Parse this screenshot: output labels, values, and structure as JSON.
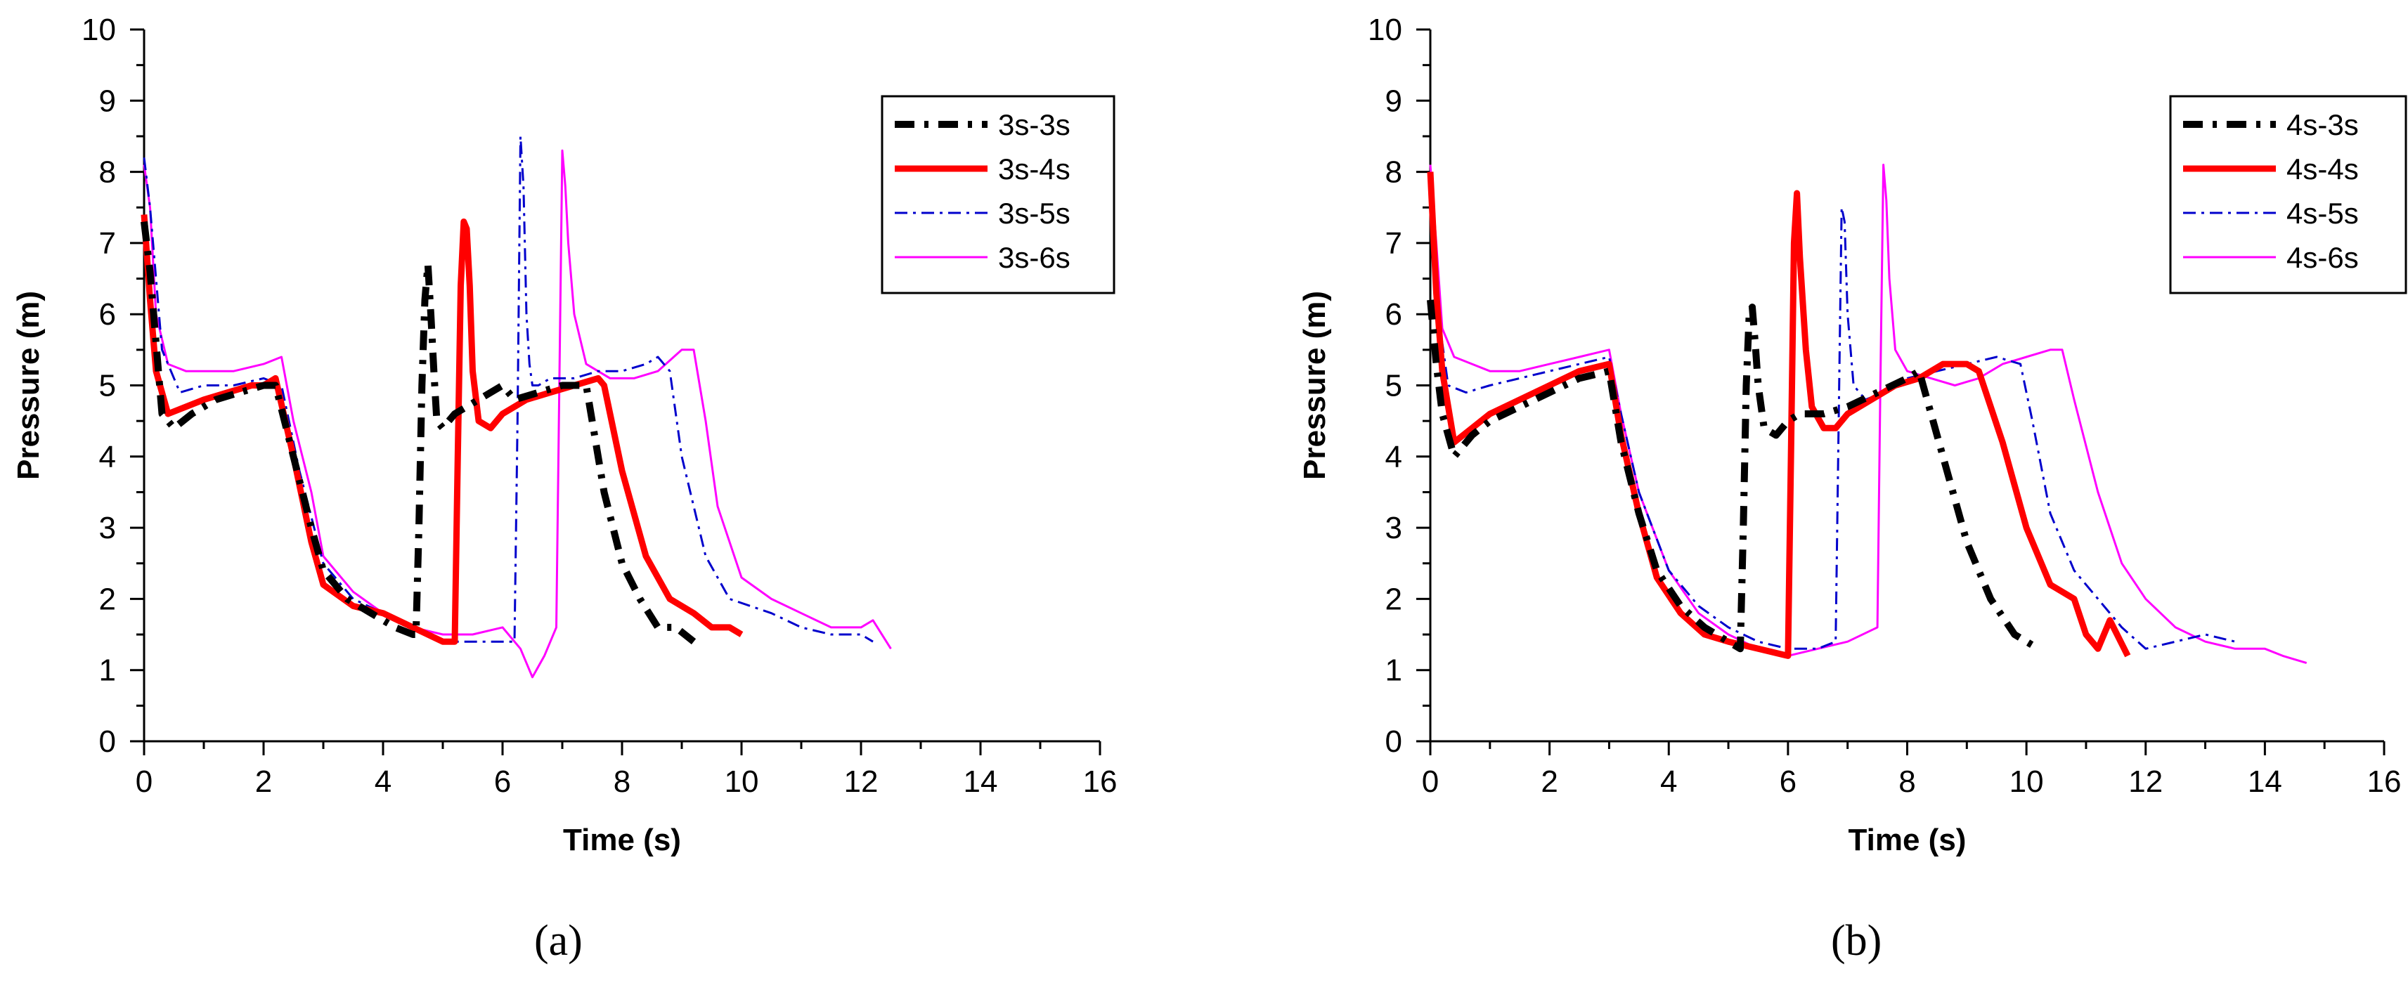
{
  "colors": {
    "axis": "#000000",
    "series_3": "#000000",
    "series_4": "#ff0000",
    "series_5": "#0000cc",
    "series_6": "#ff00ff"
  },
  "chart_data": [
    {
      "type": "line",
      "panel_label": "(a)",
      "xlabel": "Time (s)",
      "ylabel": "Pressure (m)",
      "xlim": [
        0,
        16
      ],
      "ylim": [
        0,
        10
      ],
      "xticks": [
        0,
        2,
        4,
        6,
        8,
        10,
        12,
        14,
        16
      ],
      "yticks": [
        0,
        1,
        2,
        3,
        4,
        5,
        6,
        7,
        8,
        9,
        10
      ],
      "grid": false,
      "legend_position": "top-right",
      "series": [
        {
          "name": "3s-3s",
          "style": "dashdot-thick",
          "x": [
            0,
            0.1,
            0.2,
            0.3,
            0.5,
            0.8,
            1.2,
            1.6,
            2.0,
            2.2,
            2.5,
            2.8,
            3.0,
            3.4,
            3.8,
            4.2,
            4.5,
            4.55,
            4.6,
            4.65,
            4.7,
            4.75,
            4.8,
            4.85,
            4.9,
            5.0,
            5.1,
            5.2,
            5.4,
            5.6,
            5.8,
            6.0,
            6.2,
            6.6,
            7.0,
            7.4,
            7.5,
            7.7,
            8.0,
            8.3,
            8.6,
            8.9,
            9.2
          ],
          "y": [
            7.3,
            6.6,
            5.6,
            4.6,
            4.4,
            4.6,
            4.8,
            4.9,
            5.0,
            5.0,
            4.0,
            3.0,
            2.4,
            2.0,
            1.8,
            1.6,
            1.5,
            1.5,
            3.0,
            5.0,
            6.2,
            6.7,
            6.0,
            5.2,
            4.5,
            4.4,
            4.5,
            4.6,
            4.7,
            4.8,
            4.9,
            5.0,
            4.8,
            4.9,
            5.0,
            5.0,
            4.5,
            3.5,
            2.5,
            2.0,
            1.6,
            1.6,
            1.4
          ]
        },
        {
          "name": "3s-4s",
          "style": "solid-thick",
          "x": [
            0,
            0.1,
            0.2,
            0.4,
            0.7,
            1.0,
            1.4,
            1.8,
            2.0,
            2.2,
            2.5,
            2.8,
            3.0,
            3.5,
            4.0,
            4.5,
            5.0,
            5.2,
            5.25,
            5.3,
            5.35,
            5.4,
            5.45,
            5.5,
            5.6,
            5.8,
            6.0,
            6.4,
            6.8,
            7.2,
            7.6,
            7.7,
            8.0,
            8.4,
            8.8,
            9.2,
            9.5,
            9.8,
            10.0
          ],
          "y": [
            7.4,
            6.2,
            5.2,
            4.6,
            4.7,
            4.8,
            4.9,
            5.0,
            5.0,
            5.1,
            4.0,
            2.8,
            2.2,
            1.9,
            1.8,
            1.6,
            1.4,
            1.4,
            4.0,
            6.4,
            7.3,
            7.2,
            6.4,
            5.2,
            4.5,
            4.4,
            4.6,
            4.8,
            4.9,
            5.0,
            5.1,
            5.0,
            3.8,
            2.6,
            2.0,
            1.8,
            1.6,
            1.6,
            1.5
          ]
        },
        {
          "name": "3s-5s",
          "style": "dashdot-thin",
          "x": [
            0,
            0.1,
            0.3,
            0.6,
            1.0,
            1.5,
            2.0,
            2.3,
            2.6,
            3.0,
            3.5,
            4.0,
            4.5,
            5.0,
            5.5,
            6.0,
            6.2,
            6.25,
            6.3,
            6.35,
            6.4,
            6.45,
            6.5,
            6.6,
            6.8,
            7.2,
            7.6,
            8.0,
            8.4,
            8.6,
            8.8,
            9.0,
            9.4,
            9.8,
            10.5,
            11.0,
            11.5,
            12.0,
            12.2
          ],
          "y": [
            8.2,
            7.5,
            5.5,
            4.9,
            5.0,
            5.0,
            5.1,
            5.0,
            3.8,
            2.5,
            2.0,
            1.8,
            1.6,
            1.4,
            1.4,
            1.4,
            1.4,
            4.5,
            8.5,
            7.8,
            6.0,
            5.3,
            5.0,
            5.0,
            5.1,
            5.1,
            5.2,
            5.2,
            5.3,
            5.4,
            5.2,
            4.0,
            2.6,
            2.0,
            1.8,
            1.6,
            1.5,
            1.5,
            1.4
          ]
        },
        {
          "name": "3s-6s",
          "style": "solid-thin",
          "x": [
            0,
            0.1,
            0.2,
            0.4,
            0.7,
            1.0,
            1.5,
            2.0,
            2.3,
            2.5,
            2.8,
            3.0,
            3.5,
            4.0,
            4.5,
            5.0,
            5.5,
            6.0,
            6.3,
            6.5,
            6.7,
            6.9,
            6.95,
            7.0,
            7.05,
            7.1,
            7.2,
            7.4,
            7.8,
            8.2,
            8.6,
            9.0,
            9.2,
            9.4,
            9.6,
            10.0,
            10.5,
            11.0,
            11.5,
            12.0,
            12.2,
            12.5
          ],
          "y": [
            8.1,
            7.5,
            6.0,
            5.3,
            5.2,
            5.2,
            5.2,
            5.3,
            5.4,
            4.5,
            3.5,
            2.6,
            2.1,
            1.8,
            1.6,
            1.5,
            1.5,
            1.6,
            1.3,
            0.9,
            1.2,
            1.6,
            5.0,
            8.3,
            7.8,
            7.0,
            6.0,
            5.3,
            5.1,
            5.1,
            5.2,
            5.5,
            5.5,
            4.5,
            3.3,
            2.3,
            2.0,
            1.8,
            1.6,
            1.6,
            1.7,
            1.3
          ]
        }
      ]
    },
    {
      "type": "line",
      "panel_label": "(b)",
      "xlabel": "Time (s)",
      "ylabel": "Pressure (m)",
      "xlim": [
        0,
        16
      ],
      "ylim": [
        0,
        10
      ],
      "xticks": [
        0,
        2,
        4,
        6,
        8,
        10,
        12,
        14,
        16
      ],
      "yticks": [
        0,
        1,
        2,
        3,
        4,
        5,
        6,
        7,
        8,
        9,
        10
      ],
      "grid": false,
      "legend_position": "top-right",
      "series": [
        {
          "name": "4s-3s",
          "style": "dashdot-thick",
          "x": [
            0,
            0.1,
            0.2,
            0.4,
            0.7,
            1.0,
            1.5,
            2.0,
            2.5,
            3.0,
            3.2,
            3.5,
            3.8,
            4.2,
            4.6,
            5.0,
            5.2,
            5.25,
            5.3,
            5.35,
            5.4,
            5.45,
            5.5,
            5.6,
            5.8,
            6.0,
            6.2,
            6.6,
            7.0,
            7.5,
            8.0,
            8.2,
            8.6,
            9.0,
            9.4,
            9.8,
            10.2
          ],
          "y": [
            6.2,
            5.3,
            4.6,
            4.0,
            4.3,
            4.5,
            4.7,
            4.9,
            5.1,
            5.2,
            4.2,
            3.2,
            2.4,
            1.9,
            1.6,
            1.4,
            1.3,
            3.0,
            5.0,
            6.0,
            6.1,
            5.6,
            5.0,
            4.4,
            4.3,
            4.5,
            4.6,
            4.6,
            4.7,
            4.9,
            5.1,
            5.2,
            4.0,
            2.8,
            2.0,
            1.5,
            1.3
          ]
        },
        {
          "name": "4s-4s",
          "style": "solid-thick",
          "x": [
            0,
            0.1,
            0.2,
            0.4,
            0.7,
            1.0,
            1.5,
            2.0,
            2.5,
            3.0,
            3.2,
            3.5,
            3.8,
            4.2,
            4.6,
            5.0,
            5.5,
            6.0,
            6.05,
            6.1,
            6.15,
            6.2,
            6.3,
            6.4,
            6.6,
            6.8,
            7.0,
            7.4,
            7.8,
            8.2,
            8.6,
            9.0,
            9.2,
            9.6,
            10.0,
            10.4,
            10.8,
            11.0,
            11.2,
            11.4,
            11.7
          ],
          "y": [
            8.0,
            6.3,
            5.2,
            4.2,
            4.4,
            4.6,
            4.8,
            5.0,
            5.2,
            5.3,
            4.3,
            3.2,
            2.3,
            1.8,
            1.5,
            1.4,
            1.3,
            1.2,
            4.0,
            7.0,
            7.7,
            6.8,
            5.5,
            4.7,
            4.4,
            4.4,
            4.6,
            4.8,
            5.0,
            5.1,
            5.3,
            5.3,
            5.2,
            4.2,
            3.0,
            2.2,
            2.0,
            1.5,
            1.3,
            1.7,
            1.2
          ]
        },
        {
          "name": "4s-5s",
          "style": "dashdot-thin",
          "x": [
            0,
            0.1,
            0.3,
            0.6,
            1.0,
            1.5,
            2.0,
            2.5,
            3.0,
            3.2,
            3.5,
            4.0,
            4.5,
            5.0,
            5.5,
            6.0,
            6.5,
            6.8,
            6.85,
            6.9,
            6.95,
            7.0,
            7.1,
            7.3,
            7.6,
            8.0,
            8.5,
            9.0,
            9.5,
            9.9,
            10.1,
            10.4,
            10.8,
            11.2,
            11.6,
            12.0,
            12.5,
            13.0,
            13.5
          ],
          "y": [
            7.5,
            6.2,
            5.0,
            4.9,
            5.0,
            5.1,
            5.2,
            5.3,
            5.4,
            4.6,
            3.5,
            2.4,
            1.9,
            1.6,
            1.4,
            1.3,
            1.3,
            1.4,
            4.5,
            7.5,
            7.3,
            6.0,
            5.0,
            4.8,
            4.9,
            5.1,
            5.2,
            5.3,
            5.4,
            5.3,
            4.5,
            3.2,
            2.4,
            2.0,
            1.6,
            1.3,
            1.4,
            1.5,
            1.4
          ]
        },
        {
          "name": "4s-6s",
          "style": "solid-thin",
          "x": [
            0,
            0.1,
            0.2,
            0.4,
            0.7,
            1.0,
            1.5,
            2.0,
            2.5,
            3.0,
            3.2,
            3.5,
            4.0,
            4.5,
            5.0,
            5.5,
            6.0,
            6.5,
            7.0,
            7.5,
            7.55,
            7.6,
            7.65,
            7.7,
            7.8,
            8.0,
            8.4,
            8.8,
            9.2,
            9.6,
            10.0,
            10.4,
            10.6,
            10.8,
            11.2,
            11.6,
            12.0,
            12.5,
            13.0,
            13.5,
            14.0,
            14.3,
            14.7
          ],
          "y": [
            8.1,
            7.0,
            5.8,
            5.4,
            5.3,
            5.2,
            5.2,
            5.3,
            5.4,
            5.5,
            4.6,
            3.5,
            2.4,
            1.8,
            1.5,
            1.3,
            1.2,
            1.3,
            1.4,
            1.6,
            5.0,
            8.1,
            7.6,
            6.5,
            5.5,
            5.2,
            5.1,
            5.0,
            5.1,
            5.3,
            5.4,
            5.5,
            5.5,
            4.8,
            3.5,
            2.5,
            2.0,
            1.6,
            1.4,
            1.3,
            1.3,
            1.2,
            1.1
          ]
        }
      ]
    }
  ]
}
